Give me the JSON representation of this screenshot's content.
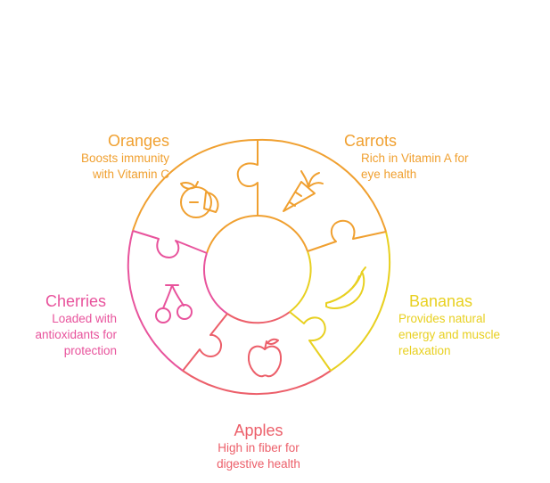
{
  "segments": [
    {
      "key": "oranges",
      "title": "Oranges",
      "lines": [
        "Boosts immunity",
        "with Vitamin C"
      ],
      "color": "#f0a030",
      "icon": "orange-icon"
    },
    {
      "key": "carrots",
      "title": "Carrots",
      "lines": [
        "Rich in Vitamin A for",
        "eye health"
      ],
      "color": "#f0a030",
      "icon": "carrot-icon"
    },
    {
      "key": "bananas",
      "title": "Bananas",
      "lines": [
        "Provides natural",
        "energy and muscle",
        "relaxation"
      ],
      "color": "#e8d020",
      "icon": "banana-icon"
    },
    {
      "key": "apples",
      "title": "Apples",
      "lines": [
        "High in fiber for",
        "digestive health"
      ],
      "color": "#ec5f6a",
      "icon": "apple-icon"
    },
    {
      "key": "cherries",
      "title": "Cherries",
      "lines": [
        "Loaded with",
        "antioxidants for",
        "protection"
      ],
      "color": "#e8539c",
      "icon": "cherry-icon"
    }
  ]
}
